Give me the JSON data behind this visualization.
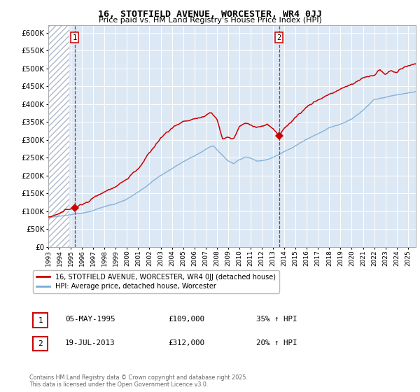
{
  "title": "16, STOTFIELD AVENUE, WORCESTER, WR4 0JJ",
  "subtitle": "Price paid vs. HM Land Registry's House Price Index (HPI)",
  "legend1": "16, STOTFIELD AVENUE, WORCESTER, WR4 0JJ (detached house)",
  "legend2": "HPI: Average price, detached house, Worcester",
  "marker1_year": 1995.35,
  "marker1_price": 109000,
  "marker2_year": 2013.54,
  "marker2_price": 312000,
  "red_color": "#cc0000",
  "blue_color": "#7aadd4",
  "bg_color": "#dde8f5",
  "grid_color": "#ffffff",
  "ylim": [
    0,
    620000
  ],
  "xlim_start": 1993.0,
  "xlim_end": 2025.7,
  "copyright": "Contains HM Land Registry data © Crown copyright and database right 2025.\nThis data is licensed under the Open Government Licence v3.0."
}
